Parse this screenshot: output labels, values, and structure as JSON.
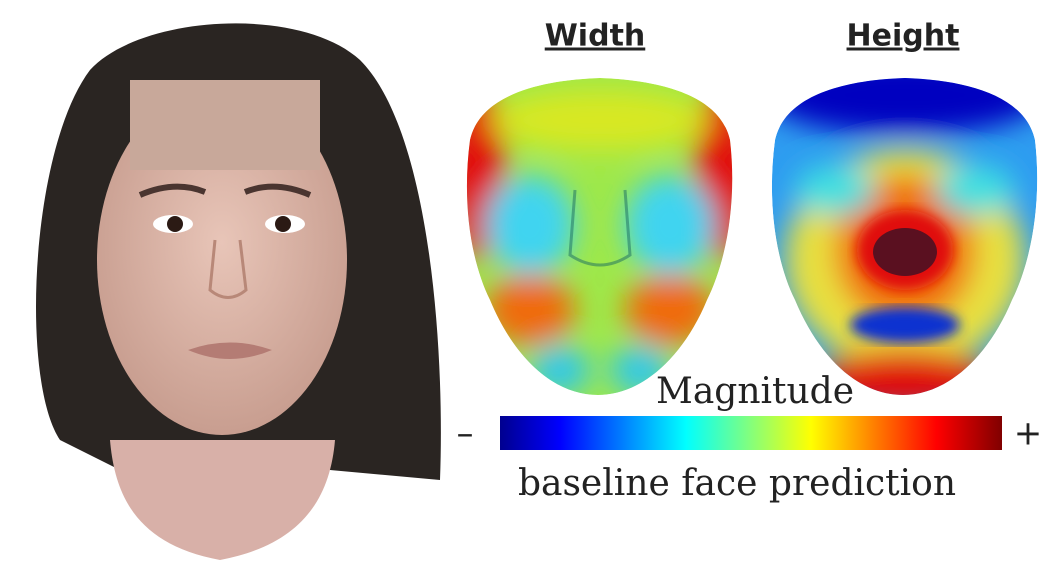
{
  "panels": {
    "left_title": "Width",
    "right_title": "Height"
  },
  "colorbar": {
    "title": "Magnitude",
    "min_label": "–",
    "max_label": "+"
  },
  "caption": "baseline face prediction"
}
